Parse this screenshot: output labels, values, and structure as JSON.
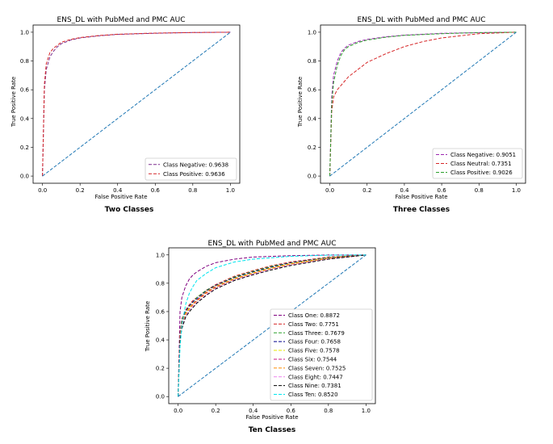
{
  "chart_data": [
    {
      "type": "line",
      "title": "ENS_DL with PubMed and PMC AUC",
      "xlabel": "False Positive Rate",
      "ylabel": "True Positive Rate",
      "caption": "Two Classes",
      "xlim": [
        -0.05,
        1.05
      ],
      "ylim": [
        -0.05,
        1.05
      ],
      "xticks": [
        "0.0",
        "0.2",
        "0.4",
        "0.6",
        "0.8",
        "1.0"
      ],
      "yticks": [
        "0.0",
        "0.2",
        "0.4",
        "0.6",
        "0.8",
        "1.0"
      ],
      "legend_position": "bottom-right",
      "series": [
        {
          "name": "Class Negative: 0.9638",
          "color": "#7b2d8e",
          "x": [
            0,
            0.01,
            0.02,
            0.04,
            0.06,
            0.08,
            0.1,
            0.15,
            0.2,
            0.3,
            0.4,
            0.6,
            0.8,
            1.0
          ],
          "y": [
            0,
            0.6,
            0.74,
            0.83,
            0.87,
            0.9,
            0.92,
            0.945,
            0.96,
            0.975,
            0.985,
            0.993,
            0.998,
            1.0
          ]
        },
        {
          "name": "Class Positive: 0.9636",
          "color": "#d62728",
          "x": [
            0,
            0.01,
            0.02,
            0.04,
            0.06,
            0.08,
            0.1,
            0.15,
            0.2,
            0.3,
            0.4,
            0.6,
            0.8,
            1.0
          ],
          "y": [
            0,
            0.64,
            0.78,
            0.86,
            0.89,
            0.91,
            0.93,
            0.95,
            0.963,
            0.977,
            0.986,
            0.994,
            0.998,
            1.0
          ]
        },
        {
          "name": "chance",
          "color": "#1f77b4",
          "x": [
            0,
            1
          ],
          "y": [
            0,
            1
          ]
        }
      ]
    },
    {
      "type": "line",
      "title": "ENS_DL with PubMed and PMC AUC",
      "xlabel": "False Positive Rate",
      "ylabel": "True Positive Rate",
      "caption": "Three Classes",
      "xlim": [
        -0.05,
        1.05
      ],
      "ylim": [
        -0.05,
        1.05
      ],
      "xticks": [
        "0.0",
        "0.2",
        "0.4",
        "0.6",
        "0.8",
        "1.0"
      ],
      "yticks": [
        "0.0",
        "0.2",
        "0.4",
        "0.6",
        "0.8",
        "1.0"
      ],
      "legend_position": "bottom-right",
      "series": [
        {
          "name": "Class Negative: 0.9051",
          "color": "#9c27b0",
          "x": [
            0,
            0.01,
            0.02,
            0.04,
            0.06,
            0.08,
            0.1,
            0.15,
            0.2,
            0.3,
            0.4,
            0.6,
            0.8,
            1.0
          ],
          "y": [
            0,
            0.55,
            0.7,
            0.8,
            0.86,
            0.89,
            0.91,
            0.935,
            0.95,
            0.968,
            0.98,
            0.992,
            0.997,
            1.0
          ]
        },
        {
          "name": "Class Neutral: 0.7351",
          "color": "#d62728",
          "x": [
            0,
            0.01,
            0.02,
            0.04,
            0.06,
            0.08,
            0.1,
            0.15,
            0.2,
            0.3,
            0.4,
            0.5,
            0.6,
            0.8,
            1.0
          ],
          "y": [
            0,
            0.45,
            0.55,
            0.6,
            0.63,
            0.66,
            0.69,
            0.74,
            0.79,
            0.85,
            0.9,
            0.935,
            0.96,
            0.99,
            1.0
          ]
        },
        {
          "name": "Class Positive: 0.9026",
          "color": "#2ca02c",
          "x": [
            0,
            0.01,
            0.02,
            0.04,
            0.06,
            0.08,
            0.1,
            0.15,
            0.2,
            0.3,
            0.4,
            0.6,
            0.8,
            1.0
          ],
          "y": [
            0,
            0.5,
            0.65,
            0.77,
            0.84,
            0.88,
            0.9,
            0.928,
            0.945,
            0.965,
            0.978,
            0.99,
            0.997,
            1.0
          ]
        },
        {
          "name": "chance",
          "color": "#1f77b4",
          "x": [
            0,
            1
          ],
          "y": [
            0,
            1
          ]
        }
      ]
    },
    {
      "type": "line",
      "title": "ENS_DL with PubMed and PMC AUC",
      "xlabel": "False Positive Rate",
      "ylabel": "True Positive Rate",
      "caption": "Ten Classes",
      "xlim": [
        -0.05,
        1.05
      ],
      "ylim": [
        -0.05,
        1.05
      ],
      "xticks": [
        "0.0",
        "0.2",
        "0.4",
        "0.6",
        "0.8",
        "1.0"
      ],
      "yticks": [
        "0.0",
        "0.2",
        "0.4",
        "0.6",
        "0.8",
        "1.0"
      ],
      "legend_position": "bottom-right",
      "series": [
        {
          "name": "Class One: 0.8872",
          "color": "#800080",
          "x": [
            0,
            0.01,
            0.02,
            0.04,
            0.06,
            0.08,
            0.1,
            0.15,
            0.2,
            0.3,
            0.4,
            0.6,
            0.8,
            1.0
          ],
          "y": [
            0,
            0.6,
            0.7,
            0.78,
            0.83,
            0.86,
            0.88,
            0.92,
            0.945,
            0.97,
            0.985,
            0.995,
            0.999,
            1.0
          ]
        },
        {
          "name": "Class Two: 0.7751",
          "color": "#d62728",
          "x": [
            0,
            0.01,
            0.02,
            0.04,
            0.06,
            0.08,
            0.1,
            0.15,
            0.2,
            0.3,
            0.4,
            0.5,
            0.6,
            0.8,
            1.0
          ],
          "y": [
            0,
            0.45,
            0.55,
            0.61,
            0.65,
            0.68,
            0.7,
            0.75,
            0.79,
            0.85,
            0.89,
            0.925,
            0.95,
            0.985,
            1.0
          ]
        },
        {
          "name": "Class Three: 0.7679",
          "color": "#2ca02c",
          "x": [
            0,
            0.01,
            0.02,
            0.04,
            0.06,
            0.08,
            0.1,
            0.15,
            0.2,
            0.3,
            0.4,
            0.5,
            0.6,
            0.8,
            1.0
          ],
          "y": [
            0,
            0.44,
            0.54,
            0.6,
            0.64,
            0.67,
            0.7,
            0.75,
            0.785,
            0.845,
            0.885,
            0.92,
            0.945,
            0.982,
            1.0
          ]
        },
        {
          "name": "Class Four: 0.7658",
          "color": "#00008b",
          "x": [
            0,
            0.01,
            0.02,
            0.04,
            0.06,
            0.08,
            0.1,
            0.15,
            0.2,
            0.3,
            0.4,
            0.5,
            0.6,
            0.8,
            1.0
          ],
          "y": [
            0,
            0.44,
            0.53,
            0.6,
            0.64,
            0.67,
            0.69,
            0.745,
            0.785,
            0.84,
            0.88,
            0.915,
            0.945,
            0.98,
            1.0
          ]
        },
        {
          "name": "Class Five: 0.7578",
          "color": "#e6e600",
          "x": [
            0,
            0.01,
            0.02,
            0.04,
            0.06,
            0.08,
            0.1,
            0.15,
            0.2,
            0.3,
            0.4,
            0.5,
            0.6,
            0.8,
            1.0
          ],
          "y": [
            0,
            0.43,
            0.52,
            0.59,
            0.63,
            0.66,
            0.68,
            0.74,
            0.78,
            0.835,
            0.875,
            0.91,
            0.94,
            0.978,
            1.0
          ]
        },
        {
          "name": "Class Six: 0.7544",
          "color": "#c71585",
          "x": [
            0,
            0.01,
            0.02,
            0.04,
            0.06,
            0.08,
            0.1,
            0.15,
            0.2,
            0.3,
            0.4,
            0.5,
            0.6,
            0.8,
            1.0
          ],
          "y": [
            0,
            0.42,
            0.51,
            0.58,
            0.62,
            0.655,
            0.68,
            0.735,
            0.775,
            0.83,
            0.87,
            0.905,
            0.935,
            0.975,
            1.0
          ]
        },
        {
          "name": "Class Seven: 0.7525",
          "color": "#ff8c00",
          "x": [
            0,
            0.01,
            0.02,
            0.04,
            0.06,
            0.08,
            0.1,
            0.15,
            0.2,
            0.3,
            0.4,
            0.5,
            0.6,
            0.8,
            1.0
          ],
          "y": [
            0,
            0.42,
            0.5,
            0.58,
            0.62,
            0.65,
            0.675,
            0.73,
            0.77,
            0.83,
            0.87,
            0.905,
            0.935,
            0.975,
            1.0
          ]
        },
        {
          "name": "Class Eight: 0.7447",
          "color": "#ee82ee",
          "x": [
            0,
            0.01,
            0.02,
            0.04,
            0.06,
            0.08,
            0.1,
            0.15,
            0.2,
            0.3,
            0.4,
            0.5,
            0.6,
            0.8,
            1.0
          ],
          "y": [
            0,
            0.41,
            0.49,
            0.57,
            0.61,
            0.64,
            0.665,
            0.72,
            0.765,
            0.825,
            0.865,
            0.9,
            0.93,
            0.972,
            1.0
          ]
        },
        {
          "name": "Class Nine: 0.7381",
          "color": "#000000",
          "x": [
            0,
            0.01,
            0.02,
            0.04,
            0.06,
            0.08,
            0.1,
            0.15,
            0.2,
            0.3,
            0.4,
            0.5,
            0.6,
            0.8,
            1.0
          ],
          "y": [
            0,
            0.4,
            0.48,
            0.56,
            0.6,
            0.63,
            0.66,
            0.715,
            0.76,
            0.82,
            0.86,
            0.895,
            0.925,
            0.97,
            1.0
          ]
        },
        {
          "name": "Class Ten: 0.8520",
          "color": "#00e5ee",
          "x": [
            0,
            0.01,
            0.02,
            0.04,
            0.06,
            0.08,
            0.1,
            0.15,
            0.2,
            0.3,
            0.4,
            0.6,
            0.8,
            1.0
          ],
          "y": [
            0,
            0.35,
            0.5,
            0.65,
            0.73,
            0.78,
            0.82,
            0.87,
            0.91,
            0.95,
            0.97,
            0.99,
            0.998,
            1.0
          ]
        },
        {
          "name": "chance",
          "color": "#1f77b4",
          "x": [
            0,
            1
          ],
          "y": [
            0,
            1
          ]
        }
      ]
    }
  ]
}
